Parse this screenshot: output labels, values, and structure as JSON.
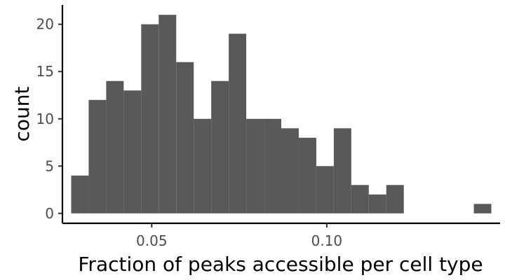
{
  "chart_data": {
    "type": "bar",
    "subtype": "histogram",
    "title": "",
    "xlabel": "Fraction of peaks accessible per cell type",
    "ylabel": "count",
    "bin_width": 0.005,
    "bins": [
      {
        "x": 0.0295,
        "count": 4
      },
      {
        "x": 0.0345,
        "count": 12
      },
      {
        "x": 0.0395,
        "count": 14
      },
      {
        "x": 0.0445,
        "count": 13
      },
      {
        "x": 0.0495,
        "count": 20
      },
      {
        "x": 0.0545,
        "count": 21
      },
      {
        "x": 0.0595,
        "count": 16
      },
      {
        "x": 0.0645,
        "count": 10
      },
      {
        "x": 0.0695,
        "count": 14
      },
      {
        "x": 0.0745,
        "count": 19
      },
      {
        "x": 0.0795,
        "count": 10
      },
      {
        "x": 0.0845,
        "count": 10
      },
      {
        "x": 0.0895,
        "count": 9
      },
      {
        "x": 0.0945,
        "count": 8
      },
      {
        "x": 0.0995,
        "count": 5
      },
      {
        "x": 0.1045,
        "count": 9
      },
      {
        "x": 0.1095,
        "count": 3
      },
      {
        "x": 0.1145,
        "count": 2
      },
      {
        "x": 0.1195,
        "count": 3
      },
      {
        "x": 0.1445,
        "count": 1
      }
    ],
    "xlim": [
      0.0245,
      0.1495
    ],
    "ylim": [
      -1.05,
      22.05
    ],
    "x_ticks": [
      {
        "value": 0.05,
        "label": "0.05"
      },
      {
        "value": 0.1,
        "label": "0.10"
      }
    ],
    "y_ticks": [
      {
        "value": 0,
        "label": "0"
      },
      {
        "value": 5,
        "label": "5"
      },
      {
        "value": 10,
        "label": "10"
      },
      {
        "value": 15,
        "label": "15"
      },
      {
        "value": 20,
        "label": "20"
      }
    ],
    "grid": false,
    "legend": "none",
    "bar_color": "#595959",
    "axis_color": "#000000",
    "tick_label_color": "#4d4d4d"
  }
}
